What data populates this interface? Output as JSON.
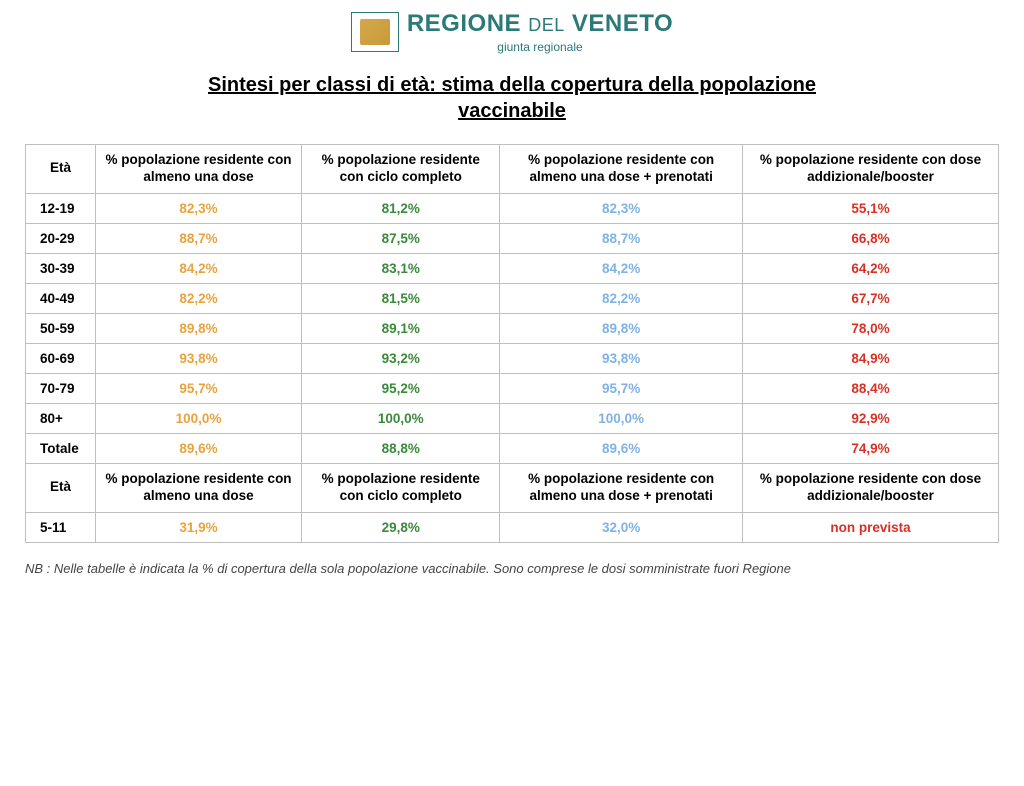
{
  "header": {
    "region_line1": "REGIONE",
    "region_del": "DEL",
    "region_line2": "VENETO",
    "subtitle": "giunta regionale"
  },
  "title": "Sintesi per classi di età: stima della copertura della popolazione vaccinabile",
  "columns": {
    "age": "Età",
    "col1": "% popolazione residente con almeno una dose",
    "col2": "% popolazione residente con ciclo completo",
    "col3": "% popolazione residente con almeno una dose + prenotati",
    "col4": "% popolazione residente con dose addizionale/booster"
  },
  "colors": {
    "brand": "#2b7a78",
    "col1": "#e8a33d",
    "col2": "#3a8a3a",
    "col3": "#7fb2e5",
    "col4": "#d93025",
    "border": "#bfbfbf"
  },
  "rows": [
    {
      "age": "12-19",
      "c1": "82,3%",
      "c2": "81,2%",
      "c3": "82,3%",
      "c4": "55,1%"
    },
    {
      "age": "20-29",
      "c1": "88,7%",
      "c2": "87,5%",
      "c3": "88,7%",
      "c4": "66,8%"
    },
    {
      "age": "30-39",
      "c1": "84,2%",
      "c2": "83,1%",
      "c3": "84,2%",
      "c4": "64,2%"
    },
    {
      "age": "40-49",
      "c1": "82,2%",
      "c2": "81,5%",
      "c3": "82,2%",
      "c4": "67,7%"
    },
    {
      "age": "50-59",
      "c1": "89,8%",
      "c2": "89,1%",
      "c3": "89,8%",
      "c4": "78,0%"
    },
    {
      "age": "60-69",
      "c1": "93,8%",
      "c2": "93,2%",
      "c3": "93,8%",
      "c4": "84,9%"
    },
    {
      "age": "70-79",
      "c1": "95,7%",
      "c2": "95,2%",
      "c3": "95,7%",
      "c4": "88,4%"
    },
    {
      "age": "80+",
      "c1": "100,0%",
      "c2": "100,0%",
      "c3": "100,0%",
      "c4": "92,9%"
    },
    {
      "age": "Totale",
      "c1": "89,6%",
      "c2": "88,8%",
      "c3": "89,6%",
      "c4": "74,9%"
    }
  ],
  "rows2": [
    {
      "age": "5-11",
      "c1": "31,9%",
      "c2": "29,8%",
      "c3": "32,0%",
      "c4": "non prevista"
    }
  ],
  "footnote": "NB : Nelle tabelle è indicata la % di copertura della sola popolazione vaccinabile. Sono comprese le dosi somministrate fuori Regione"
}
